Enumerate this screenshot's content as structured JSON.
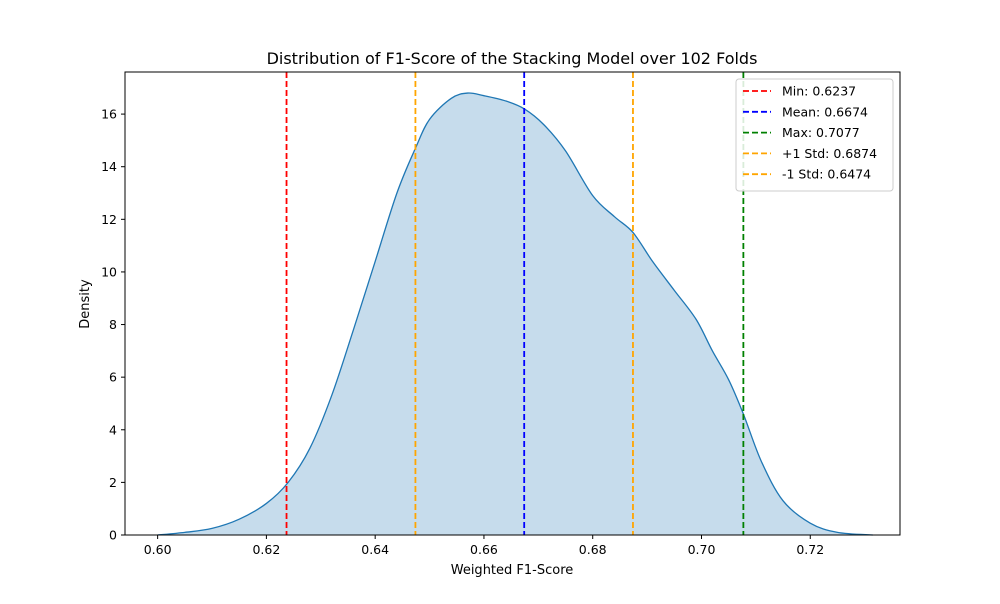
{
  "chart_data": {
    "type": "area",
    "title": "Distribution of F1-Score of the Stacking Model over 102 Folds",
    "xlabel": "Weighted F1-Score",
    "ylabel": "Density",
    "xlim": [
      0.594,
      0.7365
    ],
    "ylim": [
      0,
      17.6
    ],
    "xticks": [
      0.6,
      0.62,
      0.64,
      0.66,
      0.68,
      0.7,
      0.72
    ],
    "xtick_labels": [
      "0.60",
      "0.62",
      "0.64",
      "0.66",
      "0.68",
      "0.70",
      "0.72"
    ],
    "yticks": [
      0,
      2,
      4,
      6,
      8,
      10,
      12,
      14,
      16
    ],
    "ytick_labels": [
      "0",
      "2",
      "4",
      "6",
      "8",
      "10",
      "12",
      "14",
      "16"
    ],
    "grid": false,
    "legend_position": "top-right",
    "density_curve": {
      "fill_color": "#c6dcec",
      "line_color": "#1f77b4",
      "x": [
        0.6,
        0.605,
        0.61,
        0.615,
        0.62,
        0.624,
        0.628,
        0.632,
        0.636,
        0.64,
        0.644,
        0.6474,
        0.65,
        0.654,
        0.657,
        0.66,
        0.664,
        0.6674,
        0.671,
        0.675,
        0.68,
        0.684,
        0.6874,
        0.691,
        0.695,
        0.699,
        0.702,
        0.705,
        0.7077,
        0.711,
        0.715,
        0.72,
        0.725,
        0.7315
      ],
      "y": [
        0.0,
        0.1,
        0.25,
        0.6,
        1.2,
        2.0,
        3.3,
        5.3,
        7.8,
        10.4,
        13.0,
        14.7,
        15.8,
        16.6,
        16.8,
        16.7,
        16.5,
        16.2,
        15.6,
        14.6,
        12.9,
        12.1,
        11.5,
        10.4,
        9.3,
        8.2,
        7.0,
        5.9,
        4.6,
        2.8,
        1.3,
        0.45,
        0.1,
        0.0
      ]
    },
    "reference_lines": [
      {
        "label": "Min: 0.6237",
        "x": 0.6237,
        "color": "#ff0000"
      },
      {
        "label": "Mean: 0.6674",
        "x": 0.6674,
        "color": "#0000ff"
      },
      {
        "label": "Max: 0.7077",
        "x": 0.7077,
        "color": "#008000"
      },
      {
        "label": "+1 Std: 0.6874",
        "x": 0.6874,
        "color": "#ffa500"
      },
      {
        "label": "-1 Std: 0.6474",
        "x": 0.6474,
        "color": "#ffa500"
      }
    ]
  }
}
